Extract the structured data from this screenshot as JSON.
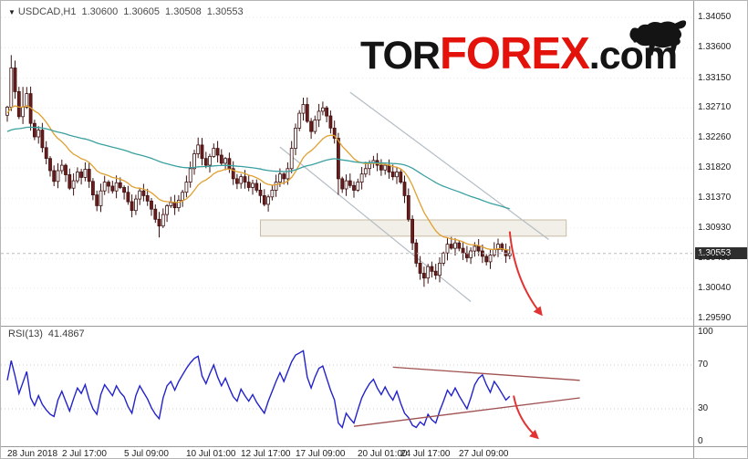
{
  "header": {
    "symbol": "USDCAD,H1",
    "ohlc": {
      "open": "1.30600",
      "high": "1.30605",
      "low": "1.30508",
      "close": "1.30553"
    }
  },
  "logo": {
    "tor": "TOR",
    "forex": "FOREX",
    "com": ".com",
    "accent": "#e3120b",
    "dark": "#141414"
  },
  "price_axis": {
    "ticks": [
      "1.34050",
      "1.33600",
      "1.33150",
      "1.32710",
      "1.32260",
      "1.31820",
      "1.31370",
      "1.30930",
      "1.30480",
      "1.30040",
      "1.29590"
    ],
    "current": "1.30553"
  },
  "rsi_axis": {
    "ticks": [
      "100",
      "70",
      "30",
      "0"
    ]
  },
  "rsi_label": {
    "name": "RSI(13)",
    "value": "41.4867"
  },
  "time_axis": [
    {
      "bar": 0,
      "text": "28 Jun 2018"
    },
    {
      "bar": 14,
      "text": "2 Jul 17:00"
    },
    {
      "bar": 30,
      "text": "5 Jul 09:00"
    },
    {
      "bar": 46,
      "text": "10 Jul 01:00"
    },
    {
      "bar": 60,
      "text": "12 Jul 17:00"
    },
    {
      "bar": 74,
      "text": "17 Jul 09:00"
    },
    {
      "bar": 90,
      "text": "20 Jul 01:00"
    },
    {
      "bar": 101,
      "text": "24 Jul 17:00"
    },
    {
      "bar": 116,
      "text": "27 Jul 09:00"
    }
  ],
  "colors": {
    "grid": "#e7e7e7",
    "up": "#ffffff",
    "down": "#6b1d1d",
    "candle_border": "#3f1010",
    "wick": "#3f1010",
    "ma_fast": "#e0a030",
    "ma_slow": "#3aa0a0",
    "rsi": "#2222cc",
    "trend": "#b4bcc4",
    "arrow": "#e23232",
    "wedge": "#a05050",
    "zone_fill": "#f1ede5",
    "zone_border": "#c8bda4",
    "current_line": "#bbbbbb"
  },
  "chart_data": [
    {
      "type": "candlestick",
      "title": "USDCAD H1",
      "y_ticks": [
        1.3405,
        1.336,
        1.3315,
        1.3271,
        1.3226,
        1.3182,
        1.3137,
        1.3093,
        1.3048,
        1.3004,
        1.2959
      ],
      "ylim": [
        1.295,
        1.3429
      ],
      "bar_count": 130,
      "first_open": 1.326,
      "closes": [
        1.3272,
        1.333,
        1.3295,
        1.3258,
        1.3272,
        1.3292,
        1.3248,
        1.3228,
        1.3238,
        1.3212,
        1.3196,
        1.3178,
        1.3162,
        1.3178,
        1.3186,
        1.3172,
        1.3152,
        1.3163,
        1.3176,
        1.3168,
        1.318,
        1.3162,
        1.3142,
        1.3126,
        1.3148,
        1.3161,
        1.3155,
        1.3148,
        1.316,
        1.3153,
        1.3146,
        1.3132,
        1.3119,
        1.3136,
        1.3148,
        1.3141,
        1.3133,
        1.3121,
        1.3106,
        1.3096,
        1.3113,
        1.3126,
        1.3131,
        1.3123,
        1.3134,
        1.3146,
        1.3161,
        1.3181,
        1.3203,
        1.3216,
        1.3196,
        1.3186,
        1.3199,
        1.3211,
        1.3201,
        1.3189,
        1.3196,
        1.3181,
        1.3166,
        1.3159,
        1.3169,
        1.3161,
        1.3153,
        1.3159,
        1.3149,
        1.3141,
        1.3128,
        1.3139,
        1.3149,
        1.3161,
        1.3173,
        1.3166,
        1.3181,
        1.3211,
        1.3241,
        1.3263,
        1.3276,
        1.3251,
        1.3236,
        1.3253,
        1.3266,
        1.3271,
        1.3259,
        1.3241,
        1.3226,
        1.3166,
        1.3151,
        1.3163,
        1.3156,
        1.3149,
        1.3161,
        1.3173,
        1.3181,
        1.3189,
        1.3193,
        1.3186,
        1.3179,
        1.3186,
        1.3176,
        1.3169,
        1.3176,
        1.3161,
        1.3141,
        1.3106,
        1.3071,
        1.3041,
        1.3026,
        1.3019,
        1.3036,
        1.3029,
        1.3023,
        1.3041,
        1.3056,
        1.3069,
        1.3063,
        1.3071,
        1.3063,
        1.3056,
        1.3049,
        1.3059,
        1.3066,
        1.3059,
        1.3051,
        1.3043,
        1.3053,
        1.3061,
        1.3069,
        1.3061,
        1.3052,
        1.30553
      ],
      "special_wicks": [
        {
          "bar": 1,
          "high": 1.3349
        },
        {
          "bar": 4,
          "high": 1.3302
        },
        {
          "bar": 39,
          "low": 1.3079
        },
        {
          "bar": 49,
          "high": 1.3227
        },
        {
          "bar": 85,
          "low": 1.3142
        },
        {
          "bar": 107,
          "low": 1.3006
        }
      ],
      "ma_fast": {
        "period": 16,
        "seed": 1.3262
      },
      "ma_slow": {
        "period": 80,
        "seed": 1.3235
      },
      "annotations": {
        "zone": {
          "from_bar": 65,
          "to_bar": 143.5,
          "top": 1.3105,
          "bottom": 1.3081
        },
        "channel_lines": [
          {
            "b1": 70,
            "p1": 1.3213,
            "b2": 119,
            "p2": 1.2984
          },
          {
            "b1": 88,
            "p1": 1.3294,
            "b2": 139,
            "p2": 1.3076
          }
        ],
        "arrow": {
          "from_bar": 129,
          "from_price": 1.3088,
          "to_bar": 137,
          "to_price": 1.2966
        }
      }
    },
    {
      "type": "line",
      "name": "RSI(13)",
      "last_value": 41.4867,
      "ylim": [
        0,
        100
      ],
      "levels": [
        70,
        30
      ],
      "values": [
        56,
        74,
        60,
        44,
        54,
        64,
        40,
        33,
        42,
        34,
        29,
        25,
        23,
        38,
        46,
        37,
        28,
        39,
        49,
        44,
        52,
        39,
        30,
        25,
        43,
        52,
        47,
        42,
        51,
        45,
        41,
        32,
        26,
        42,
        51,
        45,
        39,
        31,
        25,
        21,
        40,
        51,
        55,
        47,
        55,
        61,
        67,
        72,
        76,
        78,
        60,
        53,
        62,
        70,
        59,
        51,
        58,
        49,
        41,
        37,
        48,
        42,
        37,
        43,
        36,
        31,
        26,
        37,
        46,
        55,
        63,
        55,
        64,
        73,
        79,
        81,
        83,
        59,
        49,
        59,
        67,
        69,
        58,
        47,
        38,
        17,
        13,
        26,
        21,
        17,
        29,
        40,
        47,
        53,
        57,
        49,
        43,
        50,
        43,
        38,
        46,
        35,
        26,
        22,
        15,
        13,
        18,
        15,
        25,
        20,
        17,
        28,
        37,
        47,
        42,
        49,
        42,
        36,
        30,
        40,
        52,
        58,
        61,
        52,
        45,
        55,
        50,
        44,
        38,
        41.4867
      ],
      "wedge_lines": [
        {
          "b1": 99,
          "r1": 68,
          "b2": 147,
          "r2": 56
        },
        {
          "b1": 89,
          "r1": 14,
          "b2": 147,
          "r2": 40
        }
      ],
      "arrow": {
        "from_bar": 130,
        "from_rsi": 42,
        "to_bar": 136,
        "to_rsi": 4
      }
    }
  ]
}
